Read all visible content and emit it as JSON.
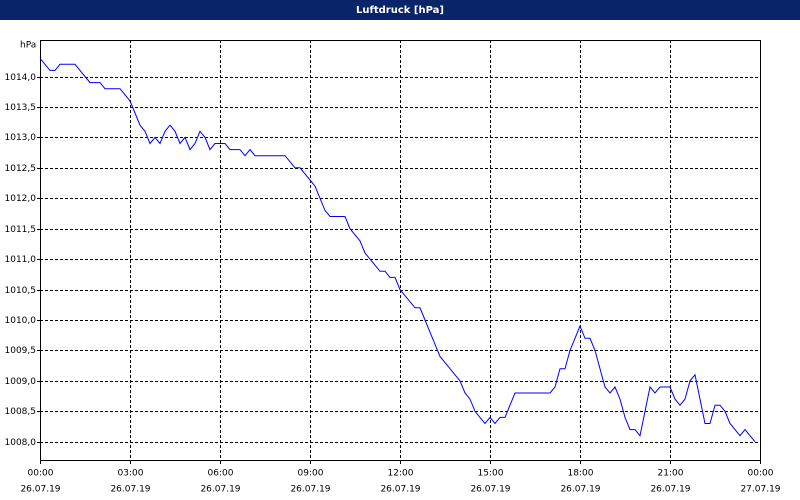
{
  "chart_data": {
    "type": "line",
    "title": "Luftdruck [hPa]",
    "y_label": "hPa",
    "xlim": [
      0,
      1440
    ],
    "xticks": [
      {
        "value": 0,
        "label": "00:00"
      },
      {
        "value": 180,
        "label": "03:00"
      },
      {
        "value": 360,
        "label": "06:00"
      },
      {
        "value": 540,
        "label": "09:00"
      },
      {
        "value": 720,
        "label": "12:00"
      },
      {
        "value": 900,
        "label": "15:00"
      },
      {
        "value": 1080,
        "label": "18:00"
      },
      {
        "value": 1260,
        "label": "21:00"
      },
      {
        "value": 1440,
        "label": "00:00"
      }
    ],
    "xtick_dates": [
      "26.07.19",
      "26.07.19",
      "26.07.19",
      "26.07.19",
      "26.07.19",
      "26.07.19",
      "26.07.19",
      "26.07.19",
      "27.07.19"
    ],
    "ylim": [
      1007.7,
      1014.6
    ],
    "yticks": [
      {
        "value": 1008.0,
        "label": "1008,0"
      },
      {
        "value": 1008.5,
        "label": "1008,5"
      },
      {
        "value": 1009.0,
        "label": "1009,0"
      },
      {
        "value": 1009.5,
        "label": "1009,5"
      },
      {
        "value": 1010.0,
        "label": "1010,0"
      },
      {
        "value": 1010.5,
        "label": "1010,5"
      },
      {
        "value": 1011.0,
        "label": "1011,0"
      },
      {
        "value": 1011.5,
        "label": "1011,5"
      },
      {
        "value": 1012.0,
        "label": "1012,0"
      },
      {
        "value": 1012.5,
        "label": "1012,5"
      },
      {
        "value": 1013.0,
        "label": "1013,0"
      },
      {
        "value": 1013.5,
        "label": "1013,5"
      },
      {
        "value": 1014.0,
        "label": "1014,0"
      }
    ],
    "grid": true,
    "color": "#0000ff",
    "x": [
      0,
      10,
      20,
      30,
      40,
      50,
      60,
      70,
      80,
      90,
      100,
      110,
      120,
      130,
      140,
      150,
      160,
      170,
      180,
      190,
      200,
      210,
      220,
      230,
      240,
      250,
      260,
      270,
      280,
      290,
      300,
      310,
      320,
      330,
      340,
      350,
      360,
      370,
      380,
      390,
      400,
      410,
      420,
      430,
      440,
      450,
      460,
      470,
      480,
      490,
      500,
      510,
      520,
      530,
      540,
      550,
      560,
      570,
      580,
      590,
      600,
      610,
      620,
      630,
      640,
      650,
      660,
      670,
      680,
      690,
      700,
      710,
      720,
      730,
      740,
      750,
      760,
      770,
      780,
      790,
      800,
      810,
      820,
      830,
      840,
      850,
      860,
      870,
      880,
      890,
      900,
      910,
      920,
      930,
      940,
      950,
      960,
      970,
      980,
      990,
      1000,
      1010,
      1020,
      1030,
      1040,
      1050,
      1060,
      1070,
      1080,
      1090,
      1100,
      1110,
      1120,
      1130,
      1140,
      1150,
      1160,
      1170,
      1180,
      1190,
      1200,
      1210,
      1220,
      1230,
      1240,
      1250,
      1260,
      1270,
      1280,
      1290,
      1300,
      1310,
      1320,
      1330,
      1340,
      1350,
      1360,
      1370,
      1380,
      1390,
      1400,
      1410,
      1420,
      1430
    ],
    "values": [
      1014.3,
      1014.2,
      1014.1,
      1014.1,
      1014.2,
      1014.2,
      1014.2,
      1014.2,
      1014.1,
      1014.0,
      1013.9,
      1013.9,
      1013.9,
      1013.8,
      1013.8,
      1013.8,
      1013.8,
      1013.7,
      1013.6,
      1013.4,
      1013.2,
      1013.1,
      1012.9,
      1013.0,
      1012.9,
      1013.1,
      1013.2,
      1013.1,
      1012.9,
      1013.0,
      1012.8,
      1012.9,
      1013.1,
      1013.0,
      1012.8,
      1012.9,
      1012.9,
      1012.9,
      1012.8,
      1012.8,
      1012.8,
      1012.7,
      1012.8,
      1012.7,
      1012.7,
      1012.7,
      1012.7,
      1012.7,
      1012.7,
      1012.7,
      1012.6,
      1012.5,
      1012.5,
      1012.4,
      1012.3,
      1012.2,
      1012.0,
      1011.8,
      1011.7,
      1011.7,
      1011.7,
      1011.7,
      1011.5,
      1011.4,
      1011.3,
      1011.1,
      1011.0,
      1010.9,
      1010.8,
      1010.8,
      1010.7,
      1010.7,
      1010.5,
      1010.4,
      1010.3,
      1010.2,
      1010.2,
      1010.0,
      1009.8,
      1009.6,
      1009.4,
      1009.3,
      1009.2,
      1009.1,
      1009.0,
      1008.8,
      1008.7,
      1008.5,
      1008.4,
      1008.3,
      1008.4,
      1008.3,
      1008.4,
      1008.4,
      1008.6,
      1008.8,
      1008.8,
      1008.8,
      1008.8,
      1008.8,
      1008.8,
      1008.8,
      1008.8,
      1008.9,
      1009.2,
      1009.2,
      1009.5,
      1009.7,
      1009.9,
      1009.7,
      1009.7,
      1009.5,
      1009.2,
      1008.9,
      1008.8,
      1008.9,
      1008.7,
      1008.4,
      1008.2,
      1008.2,
      1008.1,
      1008.5,
      1008.9,
      1008.8,
      1008.9,
      1008.9,
      1008.9,
      1008.7,
      1008.6,
      1008.7,
      1009.0,
      1009.1,
      1008.7,
      1008.3,
      1008.3,
      1008.6,
      1008.6,
      1008.5,
      1008.3,
      1008.2,
      1008.1,
      1008.2,
      1008.1,
      1008.0
    ]
  }
}
